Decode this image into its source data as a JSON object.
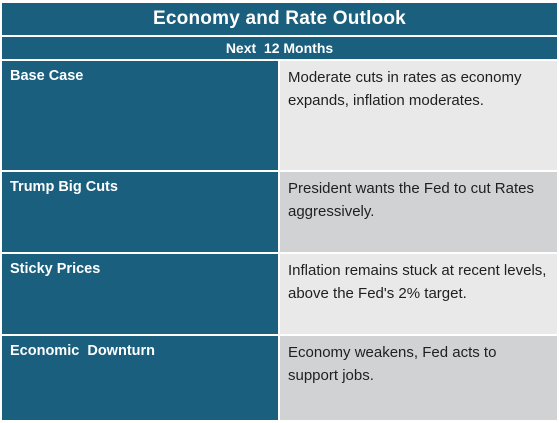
{
  "table": {
    "title": "Economy and Rate Outlook",
    "subtitle": "Next  12 Months",
    "rows": [
      {
        "scenario": "Base Case",
        "description": "Moderate cuts in rates as economy expands, inflation moderates."
      },
      {
        "scenario": "Trump Big Cuts",
        "description": "President wants the Fed to cut Rates aggressively."
      },
      {
        "scenario": "Sticky Prices",
        "description": "Inflation remains stuck at recent levels, above the Fed's 2% target."
      },
      {
        "scenario": "Economic  Downturn",
        "description": "Economy weakens, Fed acts to support jobs."
      }
    ]
  },
  "colors": {
    "header_bg": "#1a5f7e",
    "row_light": "#e9e9ea",
    "row_dark": "#d1d2d4"
  }
}
